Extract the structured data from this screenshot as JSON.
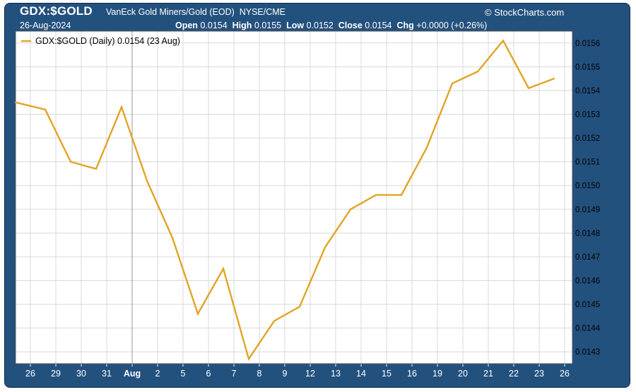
{
  "header": {
    "symbol": "GDX:$GOLD",
    "description": "VanEck Gold Miners/Gold (EOD)",
    "exchange": "NYSE/CME",
    "brand": "© StockCharts.com",
    "date": "26-Aug-2024",
    "open_label": "Open",
    "open": "0.0154",
    "high_label": "High",
    "high": "0.0155",
    "low_label": "Low",
    "low": "0.0152",
    "close_label": "Close",
    "close": "0.0154",
    "chg_label": "Chg",
    "chg": "+0.0000 (+0.26%)"
  },
  "colors": {
    "frame": "#23517e",
    "line": "#e0a526",
    "grid": "#d9d9d9",
    "plot_background": "#ffffff"
  },
  "chart_data": {
    "type": "line",
    "title": "GDX:$GOLD",
    "legend": "GDX:$GOLD (Daily) 0.0154 (23 Aug)",
    "legend_position": "top-left",
    "grid": true,
    "y_axis_side": "right",
    "ylim": [
      0.01425,
      0.01565
    ],
    "y_ticks": [
      "0.0143",
      "0.0144",
      "0.0145",
      "0.0146",
      "0.0147",
      "0.0148",
      "0.0149",
      "0.0150",
      "0.0151",
      "0.0152",
      "0.0153",
      "0.0154",
      "0.0155",
      "0.0156"
    ],
    "x_tick_labels": [
      "26",
      "29",
      "30",
      "31",
      "Aug",
      "2",
      "5",
      "6",
      "7",
      "8",
      "9",
      "12",
      "13",
      "14",
      "15",
      "16",
      "19",
      "20",
      "21",
      "22",
      "23",
      "26"
    ],
    "month_boundary_label": "Aug",
    "series": [
      {
        "name": "GDX:$GOLD",
        "x": [
          "Jul 25",
          "Jul 26",
          "Jul 29",
          "Jul 30",
          "Jul 31",
          "Aug 1",
          "Aug 2",
          "Aug 5",
          "Aug 6",
          "Aug 7",
          "Aug 8",
          "Aug 9",
          "Aug 12",
          "Aug 13",
          "Aug 14",
          "Aug 15",
          "Aug 16",
          "Aug 19",
          "Aug 20",
          "Aug 21",
          "Aug 22",
          "Aug 23"
        ],
        "values": [
          0.01535,
          0.01532,
          0.0151,
          0.01507,
          0.01533,
          0.01502,
          0.01478,
          0.01446,
          0.01465,
          0.01427,
          0.01443,
          0.01449,
          0.01474,
          0.0149,
          0.01496,
          0.01496,
          0.01516,
          0.01543,
          0.01548,
          0.01561,
          0.01541,
          0.01545
        ]
      }
    ]
  }
}
